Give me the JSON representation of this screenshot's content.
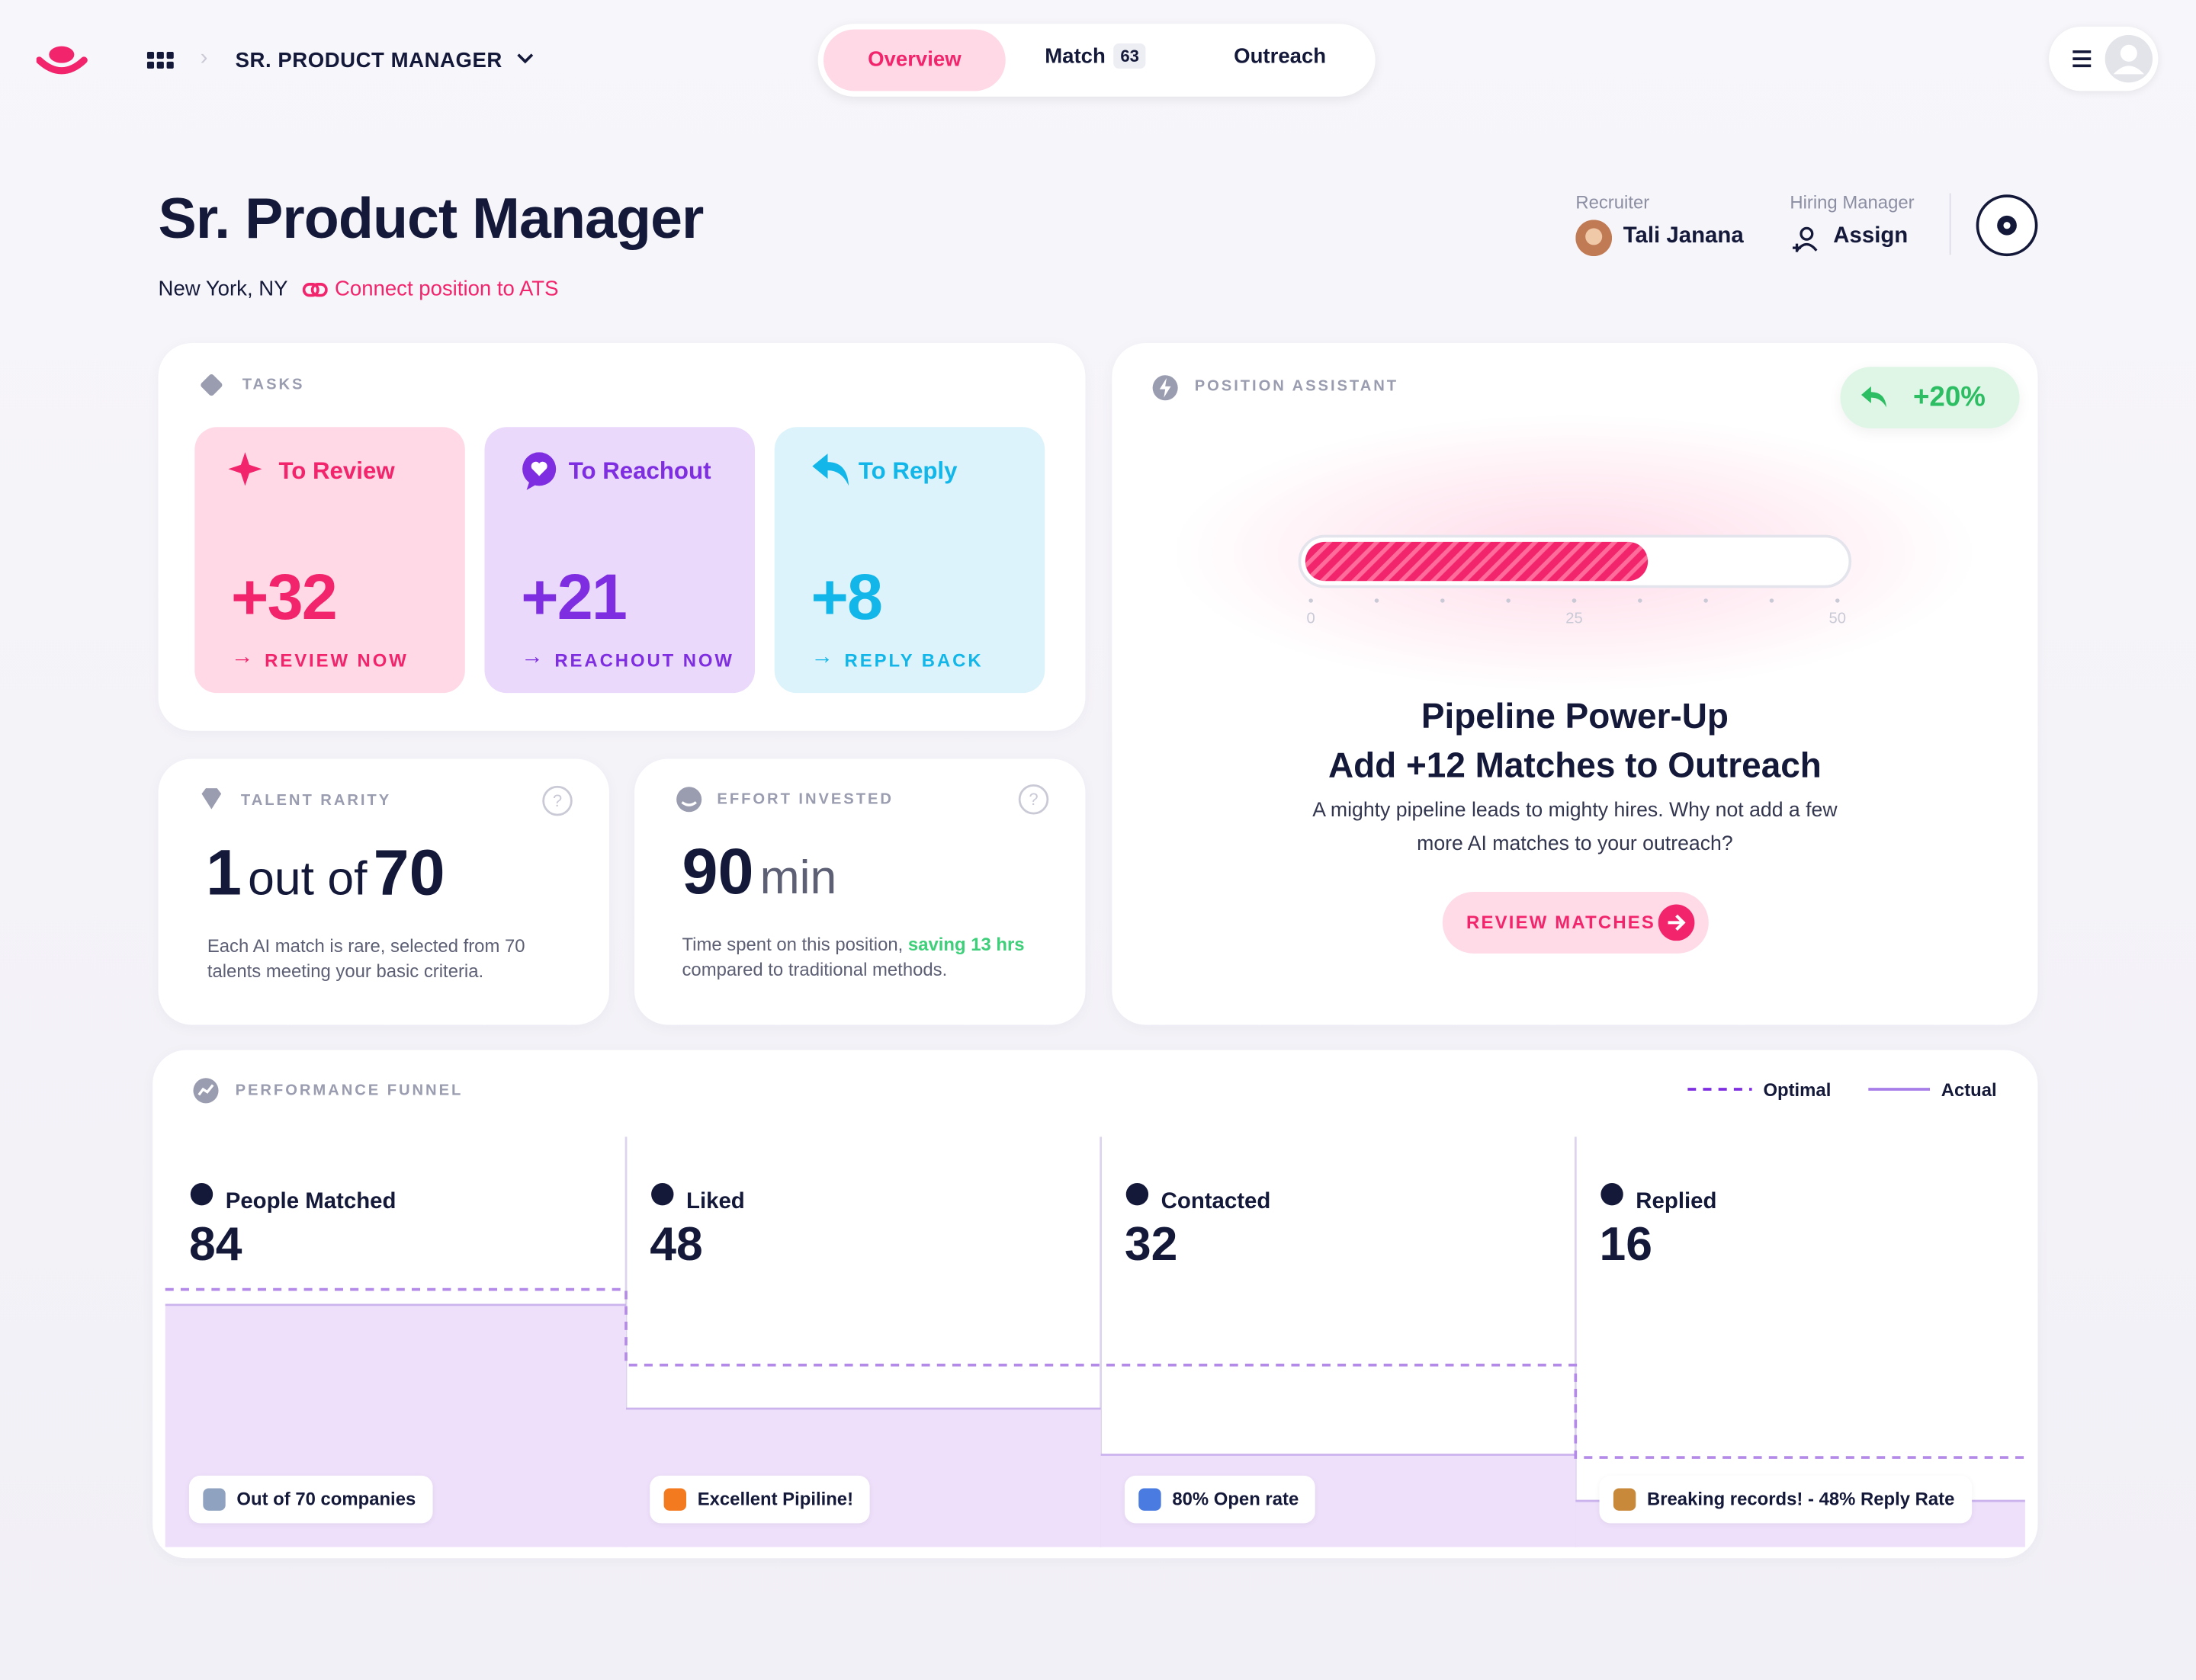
{
  "nav": {
    "position": "SR. PRODUCT MANAGER",
    "tabs": [
      {
        "label": "Overview"
      },
      {
        "label": "Match",
        "badge": "63"
      },
      {
        "label": "Outreach"
      }
    ]
  },
  "header": {
    "title": "Sr. Product Manager",
    "location": "New York, NY",
    "ats_link": "Connect position to ATS",
    "recruiter_label": "Recruiter",
    "recruiter": "Tali Janana",
    "hiring_manager_label": "Hiring Manager",
    "hiring_manager": "Assign"
  },
  "tasks": {
    "title": "TASKS",
    "cards": [
      {
        "title": "To Review",
        "count": "+32",
        "action": "REVIEW NOW"
      },
      {
        "title": "To Reachout",
        "count": "+21",
        "action": "REACHOUT NOW"
      },
      {
        "title": "To Reply",
        "count": "+8",
        "action": "REPLY BACK"
      }
    ]
  },
  "talent_rarity": {
    "title": "TALENT RARITY",
    "number": "1",
    "mid": "out of",
    "total": "70",
    "description": "Each AI match is rare, selected from 70 talents meeting your basic criteria."
  },
  "effort": {
    "title": "EFFORT INVESTED",
    "number": "90",
    "unit": "min",
    "description_pre": "Time spent on this position,",
    "highlight": "saving 13 hrs",
    "description_post": "compared to traditional methods."
  },
  "assistant": {
    "title": "POSITION ASSISTANT",
    "badge": "+20%",
    "progress": {
      "value": 32,
      "xlim": [
        0,
        50
      ],
      "xticks": [
        0,
        25,
        50
      ]
    },
    "headline1": "Pipeline Power-Up",
    "headline2": "Add +12 Matches to Outreach",
    "body": "A mighty pipeline leads to mighty hires. Why not add a few more AI matches to your outreach?",
    "button": "REVIEW MATCHES"
  },
  "funnel": {
    "title": "PERFORMANCE FUNNEL",
    "legend": [
      "Optimal",
      "Actual"
    ],
    "stages": [
      {
        "name": "People Matched",
        "value": 84,
        "note": "Out of 70 companies"
      },
      {
        "name": "Liked",
        "value": 48,
        "note": "Excellent Pipiline!"
      },
      {
        "name": "Contacted",
        "value": 32,
        "note": "80% Open rate"
      },
      {
        "name": "Replied",
        "value": 16,
        "note": "Breaking records! - 48% Reply Rate"
      }
    ]
  }
}
